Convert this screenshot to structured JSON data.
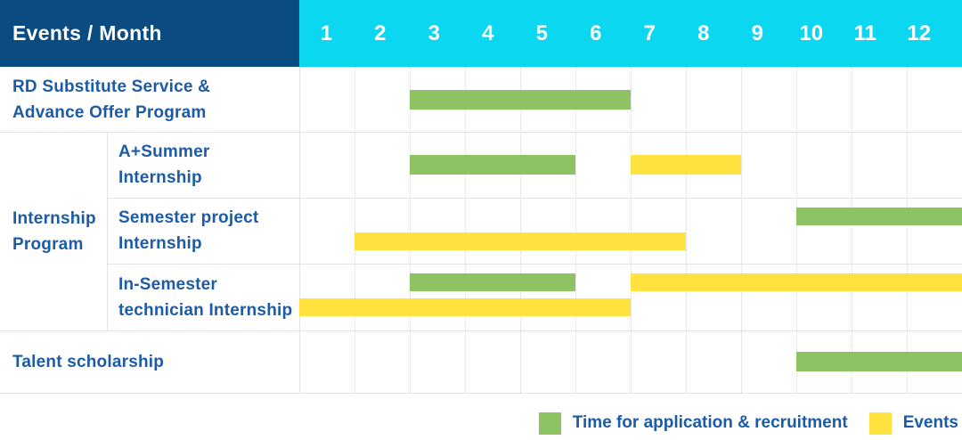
{
  "header": {
    "title": "Events / Month",
    "months": [
      "1",
      "2",
      "3",
      "4",
      "5",
      "6",
      "7",
      "8",
      "9",
      "10",
      "11",
      "12"
    ]
  },
  "colors": {
    "header_navy": "#0a4b81",
    "header_cyan": "#0cd7f0",
    "application_green": "#8dc363",
    "event_yellow": "#ffe23e",
    "label_blue": "#1d5ba6"
  },
  "group": {
    "label_lines": [
      "Internship",
      "Program"
    ]
  },
  "rows": [
    {
      "label_lines": [
        "RD Substitute Service &",
        "Advance Offer Program"
      ],
      "bars": [
        {
          "kind": "application",
          "start": 3,
          "end": 6,
          "line": "single"
        }
      ]
    },
    {
      "label_lines": [
        "A+Summer",
        "Internship"
      ],
      "bars": [
        {
          "kind": "application",
          "start": 3,
          "end": 5,
          "line": "single"
        },
        {
          "kind": "event",
          "start": 7,
          "end": 8,
          "line": "single"
        }
      ]
    },
    {
      "label_lines": [
        "Semester project",
        "Internship"
      ],
      "bars": [
        {
          "kind": "application",
          "start": 10,
          "end": 12,
          "line": "top"
        },
        {
          "kind": "event",
          "start": 2,
          "end": 7,
          "line": "bottom"
        }
      ]
    },
    {
      "label_lines": [
        "In-Semester",
        "technician Internship"
      ],
      "bars": [
        {
          "kind": "application",
          "start": 3,
          "end": 5,
          "line": "top"
        },
        {
          "kind": "event",
          "start": 7,
          "end": 12,
          "line": "top"
        },
        {
          "kind": "event",
          "start": 1,
          "end": 6,
          "line": "bottom"
        }
      ]
    },
    {
      "label_lines": [
        "Talent scholarship"
      ],
      "bars": [
        {
          "kind": "application",
          "start": 10,
          "end": 12,
          "line": "single"
        }
      ]
    }
  ],
  "legend": [
    {
      "kind": "application",
      "label": "Time for application & recruitment"
    },
    {
      "kind": "event",
      "label": "Events"
    }
  ],
  "chart_data": {
    "type": "bar",
    "subtype": "gantt",
    "title": "Events / Month",
    "x_axis": {
      "label": "Month",
      "ticks": [
        1,
        2,
        3,
        4,
        5,
        6,
        7,
        8,
        9,
        10,
        11,
        12
      ],
      "range": [
        1,
        12
      ]
    },
    "legend_position": "bottom-right",
    "series_legend": [
      {
        "name": "Time for application & recruitment",
        "color": "#8dc363"
      },
      {
        "name": "Events",
        "color": "#ffe23e"
      }
    ],
    "tasks": [
      {
        "row": "RD Substitute Service & Advance Offer Program",
        "group": null,
        "segments": [
          {
            "series": "Time for application & recruitment",
            "start_month": 3,
            "end_month": 6
          }
        ]
      },
      {
        "row": "A+Summer Internship",
        "group": "Internship Program",
        "segments": [
          {
            "series": "Time for application & recruitment",
            "start_month": 3,
            "end_month": 5
          },
          {
            "series": "Events",
            "start_month": 7,
            "end_month": 8
          }
        ]
      },
      {
        "row": "Semester project Internship",
        "group": "Internship Program",
        "segments": [
          {
            "series": "Time for application & recruitment",
            "start_month": 10,
            "end_month": 12
          },
          {
            "series": "Events",
            "start_month": 2,
            "end_month": 7
          }
        ]
      },
      {
        "row": "In-Semester technician Internship",
        "group": "Internship Program",
        "segments": [
          {
            "series": "Time for application & recruitment",
            "start_month": 3,
            "end_month": 5
          },
          {
            "series": "Events",
            "start_month": 7,
            "end_month": 12
          },
          {
            "series": "Events",
            "start_month": 1,
            "end_month": 6
          }
        ]
      },
      {
        "row": "Talent scholarship",
        "group": null,
        "segments": [
          {
            "series": "Time for application & recruitment",
            "start_month": 10,
            "end_month": 12
          }
        ]
      }
    ]
  }
}
